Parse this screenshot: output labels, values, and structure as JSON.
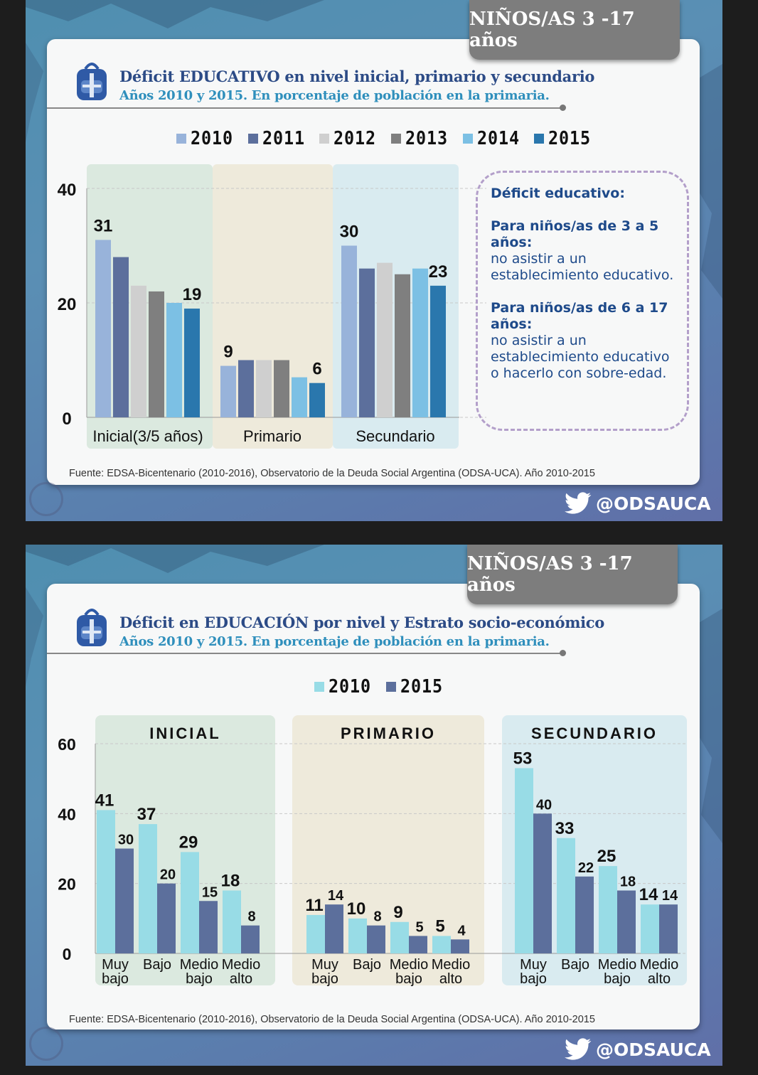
{
  "slides": [
    {
      "age_tab": "NIÑOS/AS 3 -17 años",
      "title": "Déficit EDUCATIVO en nivel inicial, primario y secundario",
      "subtitle": "Años 2010 y 2015. En porcentaje de población en la primaria.",
      "definition_box": {
        "heading": "Déficit educativo:",
        "group1_heading": "Para niños/as de 3 a 5 años:",
        "group1_text": "no asistir a un establecimiento educativo.",
        "group2_heading": "Para niños/as de 6 a 17 años:",
        "group2_text": "no asistir a un establecimiento educativo o hacerlo con sobre-edad."
      },
      "source": "Fuente: EDSA-Bicentenario (2010-2016), Observatorio de la Deuda Social Argentina (ODSA-UCA). Año 2010-2015",
      "twitter_handle": "@ODSAUCA",
      "chart_data": {
        "type": "bar",
        "categories": [
          "Inicial(3/5 años)",
          "Primario",
          "Secundario"
        ],
        "series": [
          {
            "name": "2010",
            "color": "#98b3da",
            "values": [
              31,
              9,
              30
            ]
          },
          {
            "name": "2011",
            "color": "#5c6f9c",
            "values": [
              28,
              10,
              26
            ]
          },
          {
            "name": "2012",
            "color": "#cfcfcf",
            "values": [
              23,
              10,
              27
            ]
          },
          {
            "name": "2013",
            "color": "#7f7f7f",
            "values": [
              22,
              10,
              25
            ]
          },
          {
            "name": "2014",
            "color": "#7cc0e4",
            "values": [
              20,
              7,
              26
            ]
          },
          {
            "name": "2015",
            "color": "#2a77ad",
            "values": [
              19,
              6,
              23
            ]
          }
        ],
        "data_labels": [
          {
            "category": 0,
            "series": 0,
            "text": "31"
          },
          {
            "category": 0,
            "series": 5,
            "text": "19"
          },
          {
            "category": 1,
            "series": 0,
            "text": "9"
          },
          {
            "category": 1,
            "series": 5,
            "text": "6"
          },
          {
            "category": 2,
            "series": 0,
            "text": "30"
          },
          {
            "category": 2,
            "series": 5,
            "text": "23"
          }
        ],
        "group_backgrounds": [
          "#dbe9df",
          "#eeeadb",
          "#d9ebf0"
        ],
        "yticks": [
          0,
          20,
          40
        ],
        "ylim": [
          0,
          41
        ],
        "legend": "top",
        "grid": true,
        "xlabel": "",
        "ylabel": ""
      }
    },
    {
      "age_tab": "NIÑOS/AS 3 -17 años",
      "title": "Déficit en EDUCACIÓN por nivel y Estrato socio-económico",
      "subtitle": "Años 2010 y 2015. En porcentaje de población en la primaria.",
      "source": "Fuente: EDSA-Bicentenario (2010-2016), Observatorio de la Deuda Social Argentina (ODSA-UCA). Año 2010-2015",
      "twitter_handle": "@ODSAUCA",
      "chart_data": {
        "type": "bar",
        "groups": [
          "INICIAL",
          "PRIMARIO",
          "SECUNDARIO"
        ],
        "group_backgrounds": [
          "#dbe9df",
          "#eeeadb",
          "#d9ebf0"
        ],
        "categories": [
          [
            "Muy",
            "bajo"
          ],
          [
            "Bajo",
            ""
          ],
          [
            "Medio",
            "bajo"
          ],
          [
            "Medio",
            "alto"
          ]
        ],
        "series": [
          {
            "name": "2010",
            "color": "#98dce6",
            "values": [
              [
                41,
                37,
                29,
                18
              ],
              [
                11,
                10,
                9,
                5
              ],
              [
                53,
                33,
                25,
                14
              ]
            ]
          },
          {
            "name": "2015",
            "color": "#5c6f9c",
            "values": [
              [
                30,
                20,
                15,
                8
              ],
              [
                14,
                8,
                5,
                4
              ],
              [
                40,
                22,
                18,
                14
              ]
            ]
          }
        ],
        "yticks": [
          0,
          20,
          40,
          60
        ],
        "ylim": [
          0,
          60
        ],
        "legend": "top",
        "grid": true,
        "xlabel": "",
        "ylabel": ""
      }
    }
  ]
}
